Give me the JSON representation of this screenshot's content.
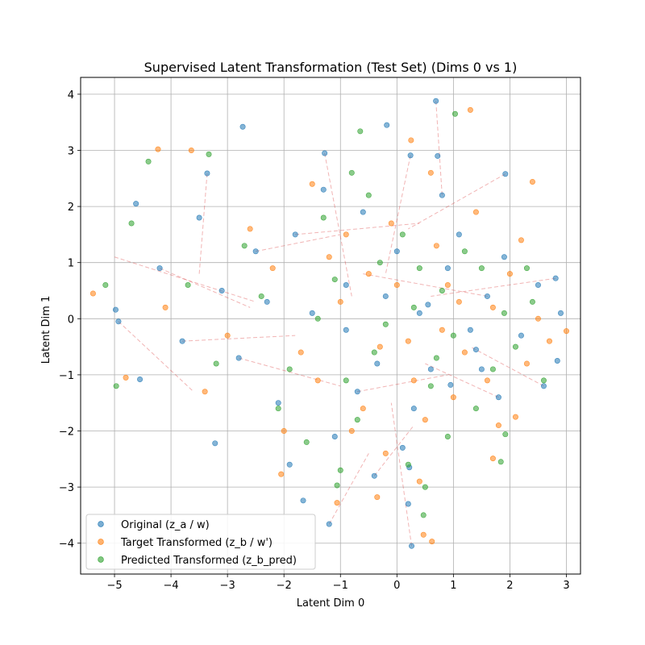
{
  "chart_data": {
    "type": "scatter",
    "title": "Supervised Latent Transformation (Test Set) (Dims 0 vs 1)",
    "xlabel": "Latent Dim 0",
    "ylabel": "Latent Dim 1",
    "xlim": [
      -5.6,
      3.25
    ],
    "ylim": [
      -4.55,
      4.3
    ],
    "xticks": [
      -5,
      -4,
      -3,
      -2,
      -1,
      0,
      1,
      2,
      3
    ],
    "yticks": [
      -4,
      -3,
      -2,
      -1,
      0,
      1,
      2,
      3,
      4
    ],
    "xtick_labels": [
      "−5",
      "−4",
      "−3",
      "−2",
      "−1",
      "0",
      "1",
      "2",
      "3"
    ],
    "ytick_labels": [
      "−4",
      "−3",
      "−2",
      "−1",
      "0",
      "1",
      "2",
      "3",
      "4"
    ],
    "grid": true,
    "legend_position": "lower-left",
    "arrow_color": "#d62728",
    "series": [
      {
        "name": "Original (z_a / w)",
        "color": "#1f77b4",
        "points": [
          [
            0.69,
            3.88
          ],
          [
            -2.73,
            3.42
          ],
          [
            0.24,
            2.91
          ],
          [
            -4.62,
            2.05
          ],
          [
            -3.36,
            2.59
          ],
          [
            1.92,
            2.58
          ],
          [
            -1.28,
            2.95
          ],
          [
            -4.98,
            0.16
          ],
          [
            -4.93,
            -0.05
          ],
          [
            -3.22,
            -2.22
          ],
          [
            -1.2,
            -3.66
          ],
          [
            0.26,
            -4.05
          ],
          [
            0.22,
            -2.65
          ],
          [
            2.81,
            0.72
          ],
          [
            2.84,
            -0.75
          ],
          [
            -4.55,
            -1.08
          ],
          [
            0.72,
            2.9
          ],
          [
            -1.66,
            -3.24
          ],
          [
            -0.18,
            3.45
          ],
          [
            0.95,
            -1.18
          ],
          [
            1.4,
            -0.55
          ],
          [
            0.55,
            0.25
          ],
          [
            -0.35,
            -0.8
          ],
          [
            -0.9,
            0.6
          ],
          [
            1.6,
            0.4
          ],
          [
            -2.1,
            -1.5
          ],
          [
            -2.5,
            1.2
          ],
          [
            0.1,
            -2.3
          ],
          [
            1.1,
            1.5
          ],
          [
            -1.5,
            0.1
          ],
          [
            2.2,
            -0.3
          ],
          [
            -0.6,
            1.9
          ],
          [
            0.3,
            -1.6
          ],
          [
            -3.1,
            0.5
          ],
          [
            1.8,
            -1.4
          ],
          [
            -1.1,
            -2.1
          ],
          [
            0.9,
            0.9
          ],
          [
            -0.2,
            0.4
          ],
          [
            2.5,
            0.6
          ],
          [
            -3.8,
            -0.4
          ],
          [
            0.6,
            -0.9
          ],
          [
            -1.8,
            1.5
          ],
          [
            1.3,
            -0.2
          ],
          [
            -0.7,
            -1.3
          ],
          [
            0.0,
            1.2
          ],
          [
            -2.8,
            -0.7
          ],
          [
            1.9,
            1.1
          ],
          [
            -0.4,
            -2.8
          ],
          [
            2.6,
            -1.2
          ],
          [
            -4.2,
            0.9
          ],
          [
            0.8,
            2.2
          ],
          [
            -1.3,
            2.3
          ],
          [
            0.4,
            0.1
          ],
          [
            -0.9,
            -0.2
          ],
          [
            1.5,
            -0.9
          ],
          [
            -2.3,
            0.3
          ],
          [
            0.2,
            -3.3
          ],
          [
            -3.5,
            1.8
          ],
          [
            2.9,
            0.1
          ],
          [
            -1.9,
            -2.6
          ]
        ]
      },
      {
        "name": "Target Transformed (z_b / w')",
        "color": "#ff7f0e",
        "points": [
          [
            1.3,
            3.72
          ],
          [
            -4.23,
            3.02
          ],
          [
            -3.64,
            3.0
          ],
          [
            0.25,
            3.18
          ],
          [
            -5.38,
            0.45
          ],
          [
            3.0,
            -0.22
          ],
          [
            0.62,
            -3.97
          ],
          [
            0.47,
            -3.85
          ],
          [
            -2.05,
            -2.77
          ],
          [
            -0.35,
            -3.18
          ],
          [
            2.4,
            2.44
          ],
          [
            1.7,
            -2.49
          ],
          [
            2.1,
            -1.75
          ],
          [
            -4.8,
            -1.05
          ],
          [
            -1.06,
            -3.28
          ],
          [
            0.9,
            0.6
          ],
          [
            0.2,
            -0.4
          ],
          [
            -0.5,
            0.8
          ],
          [
            1.2,
            -0.6
          ],
          [
            -1.4,
            -1.1
          ],
          [
            -0.1,
            1.7
          ],
          [
            1.7,
            0.2
          ],
          [
            -2.2,
            0.9
          ],
          [
            0.5,
            -1.8
          ],
          [
            -1.0,
            0.3
          ],
          [
            2.3,
            -0.8
          ],
          [
            -0.8,
            -2.0
          ],
          [
            0.7,
            1.3
          ],
          [
            -3.0,
            -0.3
          ],
          [
            1.4,
            1.9
          ],
          [
            -1.7,
            -0.6
          ],
          [
            0.3,
            -1.1
          ],
          [
            2.0,
            0.8
          ],
          [
            -0.3,
            -0.5
          ],
          [
            1.0,
            -1.4
          ],
          [
            -2.6,
            1.6
          ],
          [
            0.0,
            0.6
          ],
          [
            -1.2,
            1.1
          ],
          [
            1.8,
            -1.9
          ],
          [
            -0.6,
            -1.6
          ],
          [
            2.7,
            -0.4
          ],
          [
            -3.4,
            -1.3
          ],
          [
            0.8,
            -0.2
          ],
          [
            -1.5,
            2.4
          ],
          [
            1.1,
            0.3
          ],
          [
            -0.2,
            -2.4
          ],
          [
            2.2,
            1.4
          ],
          [
            -4.1,
            0.2
          ],
          [
            0.6,
            2.6
          ],
          [
            -2.0,
            -2.0
          ],
          [
            1.6,
            -1.1
          ],
          [
            -0.9,
            1.5
          ],
          [
            0.4,
            -2.9
          ],
          [
            2.5,
            0.0
          ]
        ]
      },
      {
        "name": "Predicted Transformed (z_b_pred)",
        "color": "#2ca02c",
        "points": [
          [
            1.03,
            3.65
          ],
          [
            -0.65,
            3.34
          ],
          [
            -4.4,
            2.8
          ],
          [
            -5.16,
            0.6
          ],
          [
            -4.97,
            -1.2
          ],
          [
            1.84,
            -2.55
          ],
          [
            0.47,
            -3.5
          ],
          [
            -1.06,
            -2.97
          ],
          [
            -3.33,
            2.93
          ],
          [
            1.92,
            -2.06
          ],
          [
            -4.7,
            1.7
          ],
          [
            0.3,
            0.2
          ],
          [
            -0.4,
            -0.6
          ],
          [
            1.0,
            -0.3
          ],
          [
            -1.1,
            0.7
          ],
          [
            0.6,
            -1.2
          ],
          [
            1.5,
            0.9
          ],
          [
            -1.9,
            -0.9
          ],
          [
            0.1,
            1.5
          ],
          [
            -0.7,
            -1.8
          ],
          [
            2.1,
            -0.5
          ],
          [
            -2.4,
            0.4
          ],
          [
            0.9,
            -2.1
          ],
          [
            -1.3,
            1.8
          ],
          [
            1.7,
            -0.9
          ],
          [
            -0.2,
            -0.1
          ],
          [
            2.4,
            0.3
          ],
          [
            -3.2,
            -0.8
          ],
          [
            0.4,
            0.9
          ],
          [
            -0.9,
            -1.1
          ],
          [
            1.2,
            1.2
          ],
          [
            -1.6,
            -2.2
          ],
          [
            0.7,
            -0.7
          ],
          [
            -2.7,
            1.3
          ],
          [
            2.6,
            -1.1
          ],
          [
            -0.5,
            2.2
          ],
          [
            0.2,
            -2.6
          ],
          [
            1.4,
            -1.6
          ],
          [
            -3.7,
            0.6
          ],
          [
            -1.0,
            -2.7
          ],
          [
            0.8,
            0.5
          ],
          [
            -0.3,
            1.0
          ],
          [
            1.9,
            0.1
          ],
          [
            -2.1,
            -1.6
          ],
          [
            0.5,
            -3.0
          ],
          [
            -1.4,
            0.0
          ],
          [
            2.3,
            0.9
          ],
          [
            -0.8,
            2.6
          ]
        ]
      }
    ],
    "arrows": [
      [
        [
          -4.93,
          -0.05
        ],
        [
          -3.6,
          -1.3
        ]
      ],
      [
        [
          -5.0,
          1.1
        ],
        [
          -2.5,
          0.3
        ]
      ],
      [
        [
          -3.36,
          2.59
        ],
        [
          -3.5,
          0.8
        ]
      ],
      [
        [
          -1.28,
          2.95
        ],
        [
          -0.8,
          0.4
        ]
      ],
      [
        [
          1.92,
          2.58
        ],
        [
          0.2,
          1.6
        ]
      ],
      [
        [
          0.26,
          -4.05
        ],
        [
          -0.1,
          -1.5
        ]
      ],
      [
        [
          -2.8,
          -0.7
        ],
        [
          -1.0,
          -1.2
        ]
      ],
      [
        [
          2.81,
          0.72
        ],
        [
          0.6,
          0.4
        ]
      ],
      [
        [
          -1.2,
          -3.66
        ],
        [
          -0.5,
          -2.4
        ]
      ],
      [
        [
          -2.5,
          1.2
        ],
        [
          -1.0,
          1.5
        ]
      ],
      [
        [
          0.69,
          3.88
        ],
        [
          0.8,
          2.2
        ]
      ],
      [
        [
          -4.2,
          0.9
        ],
        [
          -2.6,
          0.2
        ]
      ],
      [
        [
          1.8,
          -1.4
        ],
        [
          0.5,
          -0.8
        ]
      ],
      [
        [
          -0.4,
          -2.8
        ],
        [
          0.3,
          -1.9
        ]
      ],
      [
        [
          2.6,
          -1.2
        ],
        [
          1.3,
          -0.5
        ]
      ],
      [
        [
          -3.8,
          -0.4
        ],
        [
          -1.8,
          -0.3
        ]
      ],
      [
        [
          0.24,
          2.91
        ],
        [
          -0.2,
          0.8
        ]
      ],
      [
        [
          -1.8,
          1.5
        ],
        [
          0.4,
          1.7
        ]
      ],
      [
        [
          1.6,
          0.4
        ],
        [
          -0.6,
          0.8
        ]
      ],
      [
        [
          -0.7,
          -1.3
        ],
        [
          0.9,
          -1.0
        ]
      ]
    ]
  }
}
